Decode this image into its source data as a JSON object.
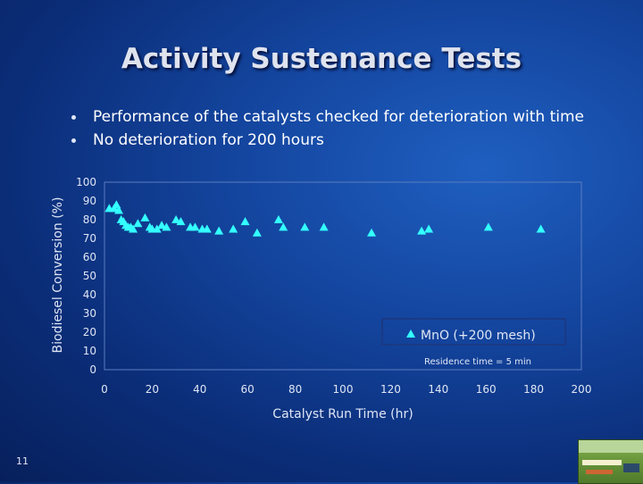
{
  "slide": {
    "title": "Activity Sustenance Tests",
    "bullets": [
      "Performance of the catalysts checked for deterioration with time",
      "No deterioration for 200 hours"
    ],
    "page_number": "11",
    "thumbnail_icon": "photo-thumbnail"
  },
  "colors": {
    "background": "#1446a0",
    "title": "#dfe3ee",
    "marker": "#33ffff",
    "axis_text": "#dfe6f5"
  },
  "chart_data": {
    "type": "scatter",
    "title": "",
    "xlabel": "Catalyst Run Time (hr)",
    "ylabel": "Biodiesel Conversion (%)",
    "xlim": [
      0,
      200
    ],
    "ylim": [
      0,
      100
    ],
    "xticks": [
      0,
      20,
      40,
      60,
      80,
      100,
      120,
      140,
      160,
      180,
      200
    ],
    "yticks": [
      0,
      10,
      20,
      30,
      40,
      50,
      60,
      70,
      80,
      90,
      100
    ],
    "grid": false,
    "legend": {
      "position": "lower-right",
      "entries": [
        "MnO (+200 mesh)"
      ]
    },
    "annotation": "Residence time = 5 min",
    "series": [
      {
        "name": "MnO (+200 mesh)",
        "marker": "triangle",
        "points": [
          [
            2,
            86
          ],
          [
            4,
            86
          ],
          [
            5,
            88
          ],
          [
            6,
            85
          ],
          [
            7,
            80
          ],
          [
            8,
            79
          ],
          [
            9,
            77
          ],
          [
            10,
            76
          ],
          [
            11,
            76
          ],
          [
            12,
            75
          ],
          [
            14,
            78
          ],
          [
            17,
            81
          ],
          [
            19,
            76
          ],
          [
            20,
            75
          ],
          [
            22,
            75
          ],
          [
            24,
            77
          ],
          [
            26,
            76
          ],
          [
            30,
            80
          ],
          [
            32,
            79
          ],
          [
            36,
            76
          ],
          [
            38,
            76
          ],
          [
            41,
            75
          ],
          [
            43,
            75
          ],
          [
            48,
            74
          ],
          [
            54,
            75
          ],
          [
            59,
            79
          ],
          [
            64,
            73
          ],
          [
            73,
            80
          ],
          [
            75,
            76
          ],
          [
            84,
            76
          ],
          [
            92,
            76
          ],
          [
            112,
            73
          ],
          [
            133,
            74
          ],
          [
            136,
            75
          ],
          [
            161,
            76
          ],
          [
            183,
            75
          ]
        ]
      }
    ]
  }
}
